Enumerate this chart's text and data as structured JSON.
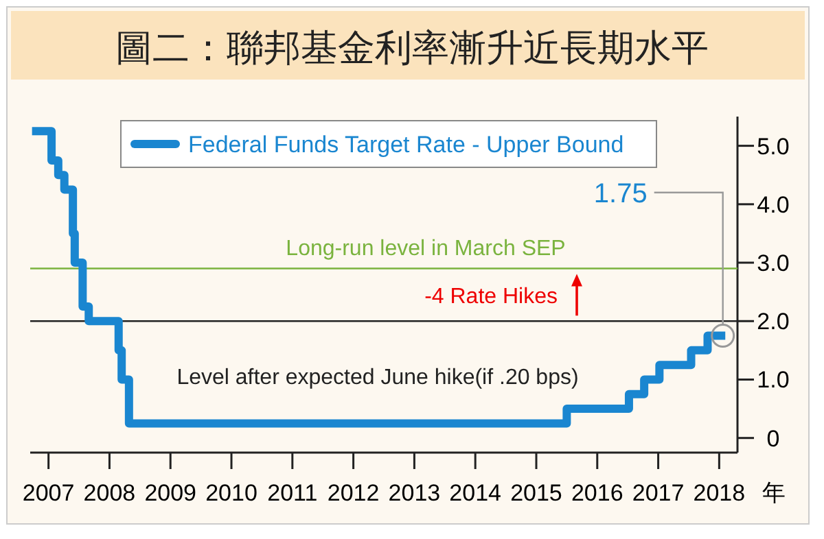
{
  "chart_data": {
    "type": "step",
    "title": "圖二：聯邦基金利率漸升近長期水平",
    "xlabel": "年",
    "x": [
      2006.73,
      2007.05,
      2007.16,
      2007.26,
      2007.4,
      2007.43,
      2007.56,
      2007.66,
      2008.15,
      2008.2,
      2008.32,
      2015.5,
      2016.52,
      2016.77,
      2017.02,
      2017.54,
      2017.81,
      2018.1
    ],
    "series": [
      {
        "name": "Federal Funds Target Rate - Upper Bound",
        "color": "#1a86d0",
        "values": [
          5.25,
          4.75,
          4.5,
          4.25,
          3.5,
          3.0,
          2.25,
          2.0,
          1.5,
          1.0,
          0.25,
          0.5,
          0.75,
          1.0,
          1.25,
          1.5,
          1.75,
          1.75
        ]
      }
    ],
    "xlim": [
      2006.7,
      2018.3
    ],
    "xticks": [
      2007,
      2008,
      2009,
      2010,
      2011,
      2012,
      2013,
      2014,
      2015,
      2016,
      2017,
      2018
    ],
    "ylim": [
      -0.25,
      5.5
    ],
    "yticks": [
      0,
      {
        "value": 1,
        "label": "1.0"
      },
      {
        "value": 2,
        "label": "2.0"
      },
      {
        "value": 3,
        "label": "3.0"
      },
      {
        "value": 4,
        "label": "4.0"
      },
      {
        "value": 5,
        "label": "5.0"
      }
    ],
    "ref_lines": [
      {
        "axis": "y",
        "value": 2.9,
        "label": "Long-run level in March SEP",
        "color": "#7ab33e"
      },
      {
        "axis": "y",
        "value": 2.0,
        "label": "Level after expected June hike(if .20 bps)",
        "color": "#222222"
      }
    ],
    "annotations": [
      {
        "text": "1.75",
        "x": 2018.06,
        "y": 1.75
      },
      "-4 Rate Hikes"
    ],
    "legend": "top left",
    "grid": false
  }
}
